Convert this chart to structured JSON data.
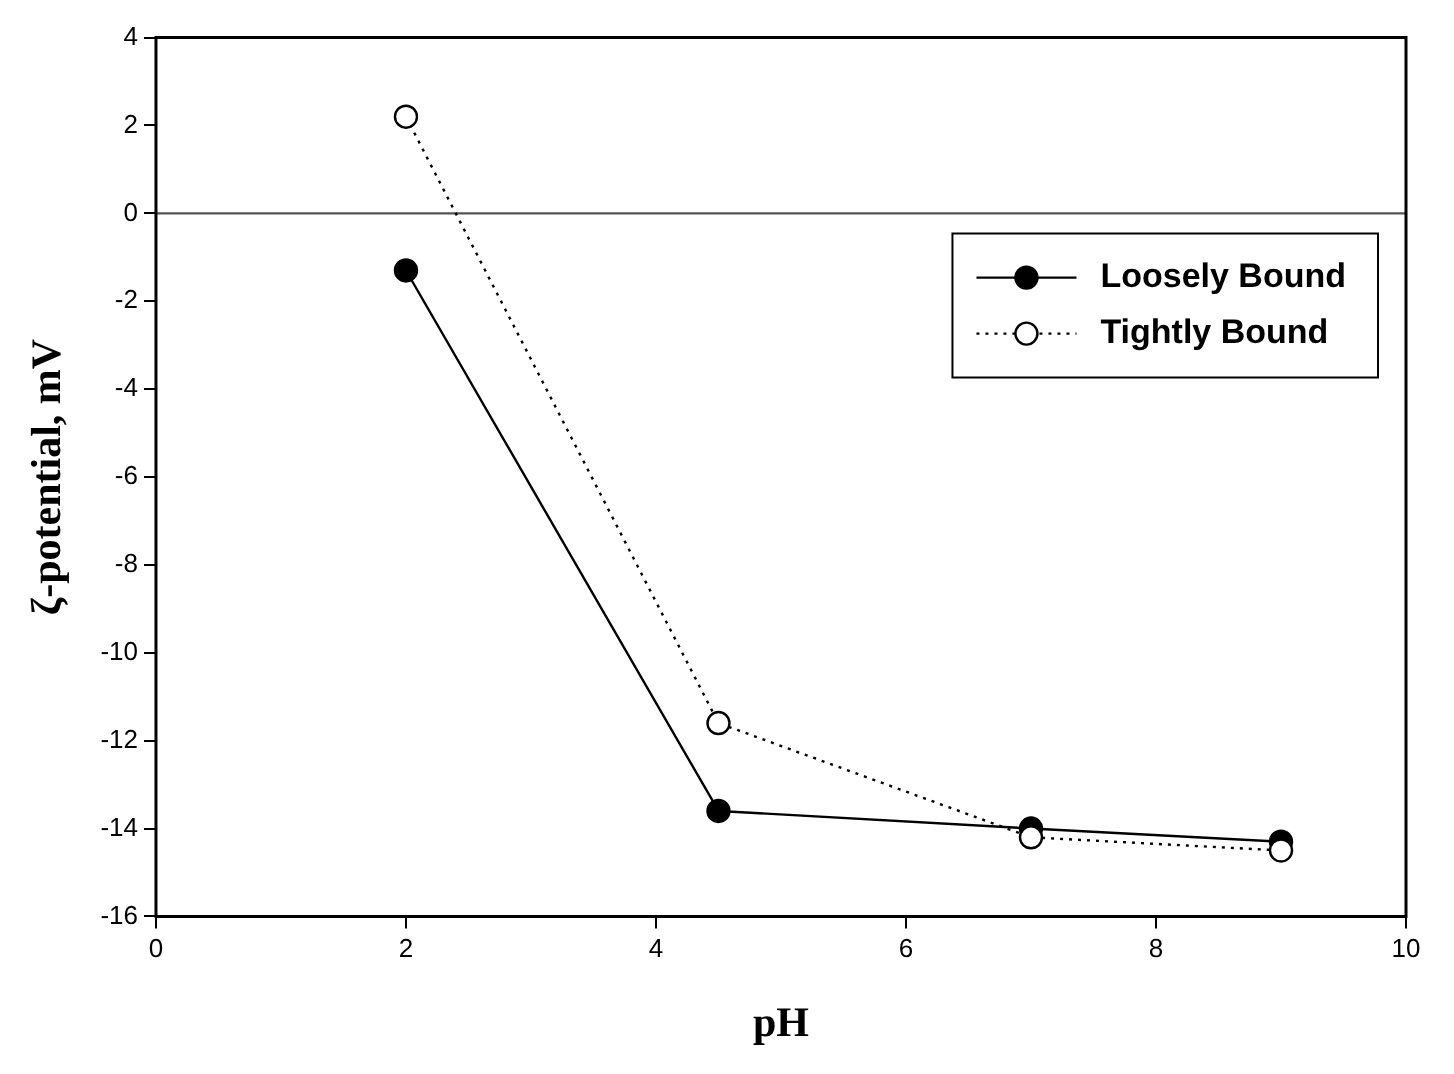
{
  "chart_data": {
    "type": "line",
    "xlabel": "pH",
    "ylabel": "ζ-potential, mV",
    "x": [
      2,
      4.5,
      7,
      9
    ],
    "series": [
      {
        "name": "Loosely Bound",
        "color": "#000000",
        "values": [
          -1.3,
          -13.6,
          -14.0,
          -14.3
        ],
        "marker": "circle",
        "line_style": "solid"
      },
      {
        "name": "Tightly Bound",
        "color": "#000000",
        "values": [
          2.2,
          -11.6,
          -14.2,
          -14.5
        ],
        "marker": "circle",
        "line_style": "dotted"
      }
    ],
    "xlim": [
      0,
      10
    ],
    "xticks": [
      0,
      2,
      4,
      6,
      8,
      10
    ],
    "ylim": [
      -16,
      4
    ],
    "yticks": [
      -16,
      -14,
      -12,
      -10,
      -8,
      -6,
      -4,
      -2,
      0,
      2,
      4
    ],
    "ref_lines": [
      {
        "axis": "y",
        "value": 0,
        "color": "#555555"
      }
    ],
    "grid": false,
    "legend": "top right"
  }
}
